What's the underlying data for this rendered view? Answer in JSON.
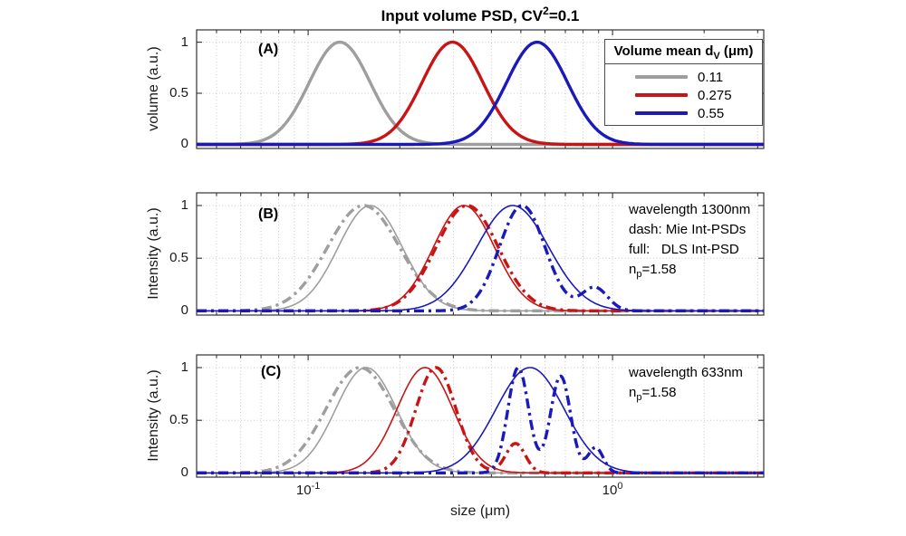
{
  "figure": {
    "title": {
      "pre": "Input volume PSD, CV",
      "sup": "2",
      "post": "=0.1"
    },
    "xlabel": "size (μm)",
    "y_tick_labels": [
      "0",
      "0.5",
      "1"
    ],
    "x_tick_labels": [
      {
        "value": 0.1,
        "base": "10",
        "exp": "-1"
      },
      {
        "value": 1,
        "base": "10",
        "exp": "0"
      }
    ]
  },
  "colors": {
    "gray": "#9e9e9e",
    "red": "#c81414",
    "blue": "#1a1abc",
    "axis": "#333333",
    "grid": "#c9c9c9",
    "text": "#000000"
  },
  "chart_data": {
    "type": "line",
    "x_scale": "log",
    "x_range_um": [
      0.043,
      3.14
    ],
    "y_range": [
      -0.04,
      1.12
    ],
    "x_ticks_minor": [
      0.05,
      0.06,
      0.07,
      0.08,
      0.09,
      0.2,
      0.3,
      0.4,
      0.5,
      0.6,
      0.7,
      0.8,
      0.9,
      2,
      3
    ],
    "x_ticks_major": [
      0.1,
      1
    ],
    "y_ticks": [
      0,
      0.5,
      1
    ],
    "y_gridlines": [
      0.5,
      1
    ],
    "panels": [
      {
        "tag": "(A)",
        "ylabel": "volume (a.u.)",
        "legend": {
          "header": {
            "pre": "Volume mean d",
            "sub": "V",
            "post": " (μm)"
          },
          "items": [
            {
              "label": "0.11",
              "color": "gray"
            },
            {
              "label": "0.275",
              "color": "red"
            },
            {
              "label": "0.55",
              "color": "blue"
            }
          ]
        },
        "annotations": [],
        "series": [
          {
            "name": "volume-psd-dv-0.11",
            "color": "gray",
            "style": "solid",
            "width": 3.4,
            "gaussians_log10": [
              {
                "center_um": 0.127,
                "sigma_dec": 0.1,
                "height": 1
              }
            ]
          },
          {
            "name": "volume-psd-dv-0.275",
            "color": "red",
            "style": "solid",
            "width": 3.4,
            "gaussians_log10": [
              {
                "center_um": 0.298,
                "sigma_dec": 0.1,
                "height": 1
              }
            ]
          },
          {
            "name": "volume-psd-dv-0.55",
            "color": "blue",
            "style": "solid",
            "width": 3.4,
            "gaussians_log10": [
              {
                "center_um": 0.565,
                "sigma_dec": 0.1,
                "height": 1
              }
            ]
          }
        ]
      },
      {
        "tag": "(B)",
        "ylabel": "Intensity (a.u.)",
        "annotations": [
          [
            {
              "t": "wavelength 1300nm"
            }
          ],
          [
            {
              "t": "dash: Mie Int-PSDs"
            }
          ],
          [
            {
              "t": "full:   DLS Int-PSD"
            }
          ],
          [
            {
              "t": "n"
            },
            {
              "t": "p",
              "sub": true
            },
            {
              "t": "=1.58"
            }
          ]
        ],
        "series": [
          {
            "name": "dls-int-psd-0.11-1300nm",
            "color": "gray",
            "style": "solid",
            "width": 1.6,
            "gaussians_log10": [
              {
                "center_um": 0.16,
                "sigma_dec": 0.105,
                "height": 1
              }
            ]
          },
          {
            "name": "mie-int-psd-0.11-1300nm",
            "color": "gray",
            "style": "dashdot",
            "width": 3.4,
            "gaussians_log10": [
              {
                "center_um": 0.152,
                "sigma_dec": 0.118,
                "height": 1
              }
            ]
          },
          {
            "name": "dls-int-psd-0.275-1300nm",
            "color": "red",
            "style": "solid",
            "width": 1.6,
            "gaussians_log10": [
              {
                "center_um": 0.325,
                "sigma_dec": 0.1,
                "height": 1
              }
            ]
          },
          {
            "name": "mie-int-psd-0.275-1300nm",
            "color": "red",
            "style": "dashdot",
            "width": 3.4,
            "gaussians_log10": [
              {
                "center_um": 0.333,
                "sigma_dec": 0.102,
                "height": 1
              }
            ]
          },
          {
            "name": "dls-int-psd-0.55-1300nm",
            "color": "blue",
            "style": "solid",
            "width": 1.6,
            "gaussians_log10": [
              {
                "center_um": 0.47,
                "sigma_dec": 0.118,
                "height": 1
              }
            ]
          },
          {
            "name": "mie-int-psd-0.55-1300nm",
            "color": "blue",
            "style": "dashdot",
            "width": 3.4,
            "gaussians_log10": [
              {
                "center_um": 0.505,
                "sigma_dec": 0.075,
                "height": 1
              },
              {
                "center_um": 0.875,
                "sigma_dec": 0.042,
                "height": 0.22
              }
            ]
          }
        ]
      },
      {
        "tag": "(C)",
        "ylabel": "Intensity (a.u.)",
        "annotations": [
          [
            {
              "t": "wavelength 633nm"
            }
          ],
          [
            {
              "t": "n"
            },
            {
              "t": "p",
              "sub": true
            },
            {
              "t": "=1.58"
            }
          ]
        ],
        "series": [
          {
            "name": "dls-int-psd-0.11-633nm",
            "color": "gray",
            "style": "solid",
            "width": 1.6,
            "gaussians_log10": [
              {
                "center_um": 0.155,
                "sigma_dec": 0.1,
                "height": 1
              }
            ]
          },
          {
            "name": "mie-int-psd-0.11-633nm",
            "color": "gray",
            "style": "dashdot",
            "width": 3.4,
            "gaussians_log10": [
              {
                "center_um": 0.148,
                "sigma_dec": 0.112,
                "height": 1
              }
            ]
          },
          {
            "name": "dls-int-psd-0.275-633nm",
            "color": "red",
            "style": "solid",
            "width": 1.6,
            "gaussians_log10": [
              {
                "center_um": 0.242,
                "sigma_dec": 0.092,
                "height": 1
              }
            ]
          },
          {
            "name": "mie-int-psd-0.275-633nm",
            "color": "red",
            "style": "dashdot",
            "width": 3.4,
            "gaussians_log10": [
              {
                "center_um": 0.263,
                "sigma_dec": 0.066,
                "height": 1
              },
              {
                "center_um": 0.48,
                "sigma_dec": 0.032,
                "height": 0.28
              }
            ]
          },
          {
            "name": "dls-int-psd-0.55-633nm",
            "color": "blue",
            "style": "solid",
            "width": 1.6,
            "gaussians_log10": [
              {
                "center_um": 0.536,
                "sigma_dec": 0.112,
                "height": 1
              }
            ]
          },
          {
            "name": "mie-int-psd-0.55-633nm",
            "color": "blue",
            "style": "dashdot",
            "width": 3.4,
            "gaussians_log10": [
              {
                "center_um": 0.49,
                "sigma_dec": 0.034,
                "height": 1
              },
              {
                "center_um": 0.675,
                "sigma_dec": 0.033,
                "height": 0.92
              },
              {
                "center_um": 0.88,
                "sigma_dec": 0.025,
                "height": 0.24
              }
            ]
          }
        ]
      }
    ]
  }
}
